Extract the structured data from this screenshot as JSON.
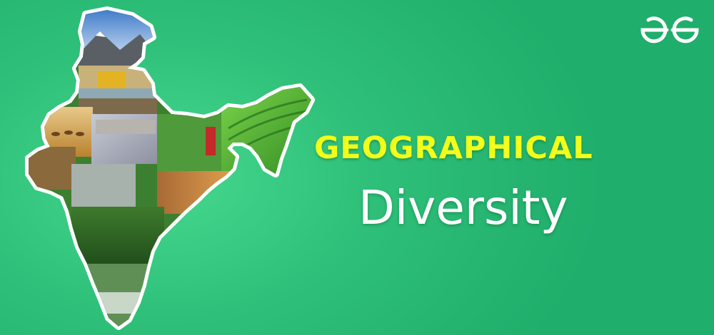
{
  "banner": {
    "title": "GEOGRAPHICAL",
    "subtitle": "Diversity",
    "colors": {
      "background": "#2fc07a",
      "title": "#f2ff1a",
      "subtitle": "#ffffff",
      "logo": "#ffffff"
    }
  },
  "logo": {
    "icon": "gfg-logo-icon"
  },
  "map": {
    "icon": "india-map-collage"
  }
}
